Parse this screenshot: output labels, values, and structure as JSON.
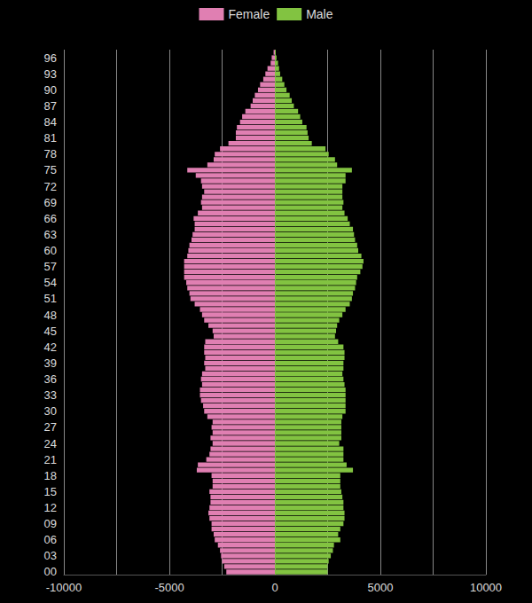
{
  "chart_data": {
    "type": "bar",
    "orientation": "horizontal",
    "stacked": true,
    "grid": true,
    "legend": "top",
    "categories": [
      "00",
      null,
      null,
      "03",
      null,
      null,
      "06",
      null,
      null,
      "09",
      null,
      null,
      "12",
      null,
      null,
      "15",
      null,
      null,
      "18",
      null,
      null,
      "21",
      null,
      null,
      "24",
      null,
      null,
      "27",
      null,
      null,
      "30",
      null,
      null,
      "33",
      null,
      null,
      "36",
      null,
      null,
      "39",
      null,
      null,
      "42",
      null,
      null,
      "45",
      null,
      null,
      "48",
      null,
      null,
      "51",
      null,
      null,
      "54",
      null,
      null,
      "57",
      null,
      null,
      "60",
      null,
      null,
      "63",
      null,
      null,
      "66",
      null,
      null,
      "69",
      null,
      null,
      "72",
      null,
      null,
      "75",
      null,
      null,
      "78",
      null,
      null,
      "81",
      null,
      null,
      "84",
      null,
      null,
      "87",
      null,
      null,
      "90",
      null,
      null,
      "93",
      null,
      null,
      "96",
      null
    ],
    "series": [
      {
        "name": "Female",
        "color": "#e07fb2",
        "values": [
          -2300,
          -2400,
          -2500,
          -2550,
          -2600,
          -2700,
          -2850,
          -2900,
          -3000,
          -3000,
          -3100,
          -3150,
          -3100,
          -3050,
          -3050,
          -3100,
          -2950,
          -2950,
          -3000,
          -3700,
          -3650,
          -3250,
          -3100,
          -3050,
          -2950,
          -3050,
          -2950,
          -3000,
          -2950,
          -3200,
          -3350,
          -3400,
          -3500,
          -3550,
          -3550,
          -3450,
          -3500,
          -3450,
          -3300,
          -3350,
          -3300,
          -3350,
          -3350,
          -3300,
          -2900,
          -2950,
          -3150,
          -3350,
          -3450,
          -3550,
          -3800,
          -4000,
          -4050,
          -4150,
          -4200,
          -4300,
          -4300,
          -4300,
          -4300,
          -4150,
          -4100,
          -4050,
          -3950,
          -3900,
          -3800,
          -3800,
          -3850,
          -3650,
          -3450,
          -3500,
          -3450,
          -3350,
          -3450,
          -3500,
          -3750,
          -4150,
          -3200,
          -2900,
          -2850,
          -2600,
          -2200,
          -1850,
          -1850,
          -1800,
          -1650,
          -1550,
          -1400,
          -1150,
          -1050,
          -950,
          -800,
          -700,
          -550,
          -450,
          -350,
          -200,
          -150,
          -60
        ]
      },
      {
        "name": "Male",
        "color": "#82c341",
        "values": [
          2500,
          2500,
          2550,
          2650,
          2750,
          2800,
          3100,
          3000,
          3100,
          3250,
          3300,
          3300,
          3250,
          3250,
          3200,
          3150,
          3100,
          3100,
          3100,
          3700,
          3400,
          3250,
          3250,
          3250,
          3050,
          3150,
          3150,
          3150,
          3150,
          3200,
          3350,
          3350,
          3350,
          3350,
          3350,
          3300,
          3250,
          3200,
          3250,
          3250,
          3300,
          3300,
          3250,
          3000,
          2850,
          2900,
          2950,
          3050,
          3200,
          3350,
          3550,
          3650,
          3700,
          3800,
          3850,
          3900,
          4050,
          4150,
          4200,
          4100,
          3950,
          3900,
          3800,
          3750,
          3700,
          3550,
          3450,
          3300,
          3200,
          3250,
          3200,
          3200,
          3200,
          3350,
          3350,
          3650,
          2950,
          2850,
          2550,
          2400,
          1750,
          1600,
          1550,
          1500,
          1300,
          1200,
          1100,
          900,
          800,
          700,
          550,
          450,
          350,
          250,
          200,
          150,
          80,
          40
        ]
      }
    ],
    "xlim": [
      -10000,
      10000
    ],
    "xticks": [
      -10000,
      -5000,
      0,
      5000,
      10000
    ]
  }
}
